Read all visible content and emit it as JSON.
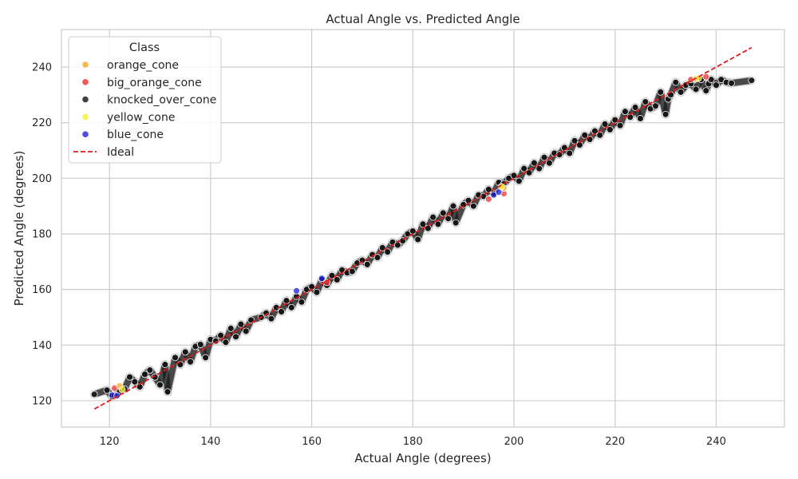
{
  "chart_data": {
    "type": "scatter",
    "title": "Actual Angle vs. Predicted Angle",
    "xlabel": "Actual Angle (degrees)",
    "ylabel": "Predicted Angle (degrees)",
    "xlim": [
      110.5,
      253.5
    ],
    "ylim": [
      110.5,
      253.5
    ],
    "xticks": [
      120,
      140,
      160,
      180,
      200,
      220,
      240
    ],
    "yticks": [
      120,
      140,
      160,
      180,
      200,
      220,
      240
    ],
    "grid": true,
    "legend": {
      "title": "Class",
      "placement": "top-left",
      "entries": [
        {
          "label": "orange_cone",
          "color": "#f5a623",
          "marker": "dot"
        },
        {
          "label": "big_orange_cone",
          "color": "#f03030",
          "marker": "dot"
        },
        {
          "label": "knocked_over_cone",
          "color": "#111111",
          "marker": "dot"
        },
        {
          "label": "yellow_cone",
          "color": "#f4f030",
          "marker": "dot"
        },
        {
          "label": "blue_cone",
          "color": "#2020e0",
          "marker": "dot"
        },
        {
          "label": "Ideal",
          "color": "#e31a1c",
          "marker": "dashed-line"
        }
      ]
    },
    "ideal_line": {
      "name": "Ideal",
      "x": [
        117,
        247
      ],
      "y": [
        117,
        247
      ],
      "color": "#e31a1c"
    },
    "series": [
      {
        "name": "knocked_over_cone",
        "color": "#111111",
        "points": [
          [
            117,
            122.3
          ],
          [
            119.5,
            123.8
          ],
          [
            120.5,
            121.5
          ],
          [
            121,
            122
          ],
          [
            122,
            123.5
          ],
          [
            123,
            124.2
          ],
          [
            124,
            128.5
          ],
          [
            125,
            126.8
          ],
          [
            126,
            125
          ],
          [
            127,
            129.5
          ],
          [
            128,
            131
          ],
          [
            129,
            128.5
          ],
          [
            130,
            125.7
          ],
          [
            131,
            133
          ],
          [
            131.5,
            123.2
          ],
          [
            133,
            135.5
          ],
          [
            134,
            133
          ],
          [
            135,
            137.5
          ],
          [
            136,
            134
          ],
          [
            137,
            139.5
          ],
          [
            138,
            140.2
          ],
          [
            139,
            135.5
          ],
          [
            140,
            142
          ],
          [
            141,
            141.5
          ],
          [
            142,
            143.5
          ],
          [
            143,
            141
          ],
          [
            144,
            146
          ],
          [
            145,
            143
          ],
          [
            146,
            147.5
          ],
          [
            147,
            145
          ],
          [
            148,
            149
          ],
          [
            150,
            150
          ],
          [
            151,
            151.5
          ],
          [
            152,
            149.5
          ],
          [
            153,
            153.5
          ],
          [
            154,
            152
          ],
          [
            155,
            156
          ],
          [
            156,
            153.5
          ],
          [
            157,
            157.5
          ],
          [
            158,
            155.5
          ],
          [
            159,
            160
          ],
          [
            160,
            161
          ],
          [
            161,
            159
          ],
          [
            162,
            163.5
          ],
          [
            163,
            161.5
          ],
          [
            164,
            165
          ],
          [
            165,
            163.5
          ],
          [
            166,
            167
          ],
          [
            167,
            166
          ],
          [
            168,
            166.5
          ],
          [
            169,
            169.5
          ],
          [
            170,
            170.5
          ],
          [
            171,
            169
          ],
          [
            172,
            172.5
          ],
          [
            173,
            171.5
          ],
          [
            174,
            175
          ],
          [
            175,
            173.5
          ],
          [
            176,
            177
          ],
          [
            177,
            176
          ],
          [
            178,
            177.5
          ],
          [
            179,
            180
          ],
          [
            180,
            181
          ],
          [
            181,
            178
          ],
          [
            182,
            183.5
          ],
          [
            183,
            182
          ],
          [
            184,
            186
          ],
          [
            185,
            183.5
          ],
          [
            186,
            187.5
          ],
          [
            187,
            185.5
          ],
          [
            188,
            190
          ],
          [
            188.5,
            184
          ],
          [
            190,
            190.5
          ],
          [
            191,
            192
          ],
          [
            192,
            190
          ],
          [
            193,
            194
          ],
          [
            194,
            193.5
          ],
          [
            195,
            196
          ],
          [
            196,
            194.5
          ],
          [
            197,
            198.5
          ],
          [
            198,
            198
          ],
          [
            199,
            200
          ],
          [
            200,
            201
          ],
          [
            201,
            199
          ],
          [
            202,
            203.5
          ],
          [
            203,
            202
          ],
          [
            204,
            205.5
          ],
          [
            205,
            203.5
          ],
          [
            206,
            207.5
          ],
          [
            207,
            205.5
          ],
          [
            208,
            209
          ],
          [
            209,
            208.5
          ],
          [
            210,
            211
          ],
          [
            211,
            209
          ],
          [
            212,
            213.5
          ],
          [
            213,
            212
          ],
          [
            214,
            215.5
          ],
          [
            215,
            214
          ],
          [
            216,
            217
          ],
          [
            217,
            215.5
          ],
          [
            218,
            219.5
          ],
          [
            219,
            217.5
          ],
          [
            220,
            221
          ],
          [
            221,
            219
          ],
          [
            222,
            224
          ],
          [
            223,
            222
          ],
          [
            224,
            225.5
          ],
          [
            225,
            221.5
          ],
          [
            226,
            227.5
          ],
          [
            227,
            225
          ],
          [
            228,
            226
          ],
          [
            229,
            231
          ],
          [
            230,
            223
          ],
          [
            230.5,
            228.5
          ],
          [
            231,
            230
          ],
          [
            232,
            234.5
          ],
          [
            233,
            231
          ],
          [
            234,
            233.5
          ],
          [
            235,
            234
          ],
          [
            236,
            232
          ],
          [
            237,
            235.5
          ],
          [
            238,
            231.5
          ],
          [
            238.5,
            234
          ],
          [
            239,
            235.5
          ],
          [
            240,
            233.5
          ],
          [
            241,
            235.5
          ],
          [
            242,
            234.5
          ],
          [
            243,
            234.2
          ],
          [
            247,
            235.2
          ]
        ]
      },
      {
        "name": "big_orange_cone",
        "color": "#f03030",
        "points": [
          [
            121,
            124.5
          ],
          [
            163,
            162.5
          ],
          [
            195,
            192.5
          ],
          [
            198,
            194.5
          ],
          [
            235,
            235.5
          ],
          [
            238,
            236.5
          ]
        ]
      },
      {
        "name": "orange_cone",
        "color": "#f5a623",
        "points": [
          [
            122,
            125.3
          ],
          [
            198,
            196.5
          ],
          [
            236,
            235.8
          ]
        ]
      },
      {
        "name": "yellow_cone",
        "color": "#f4f030",
        "points": [
          [
            122.5,
            124
          ],
          [
            197.5,
            197
          ],
          [
            236.5,
            236
          ]
        ]
      },
      {
        "name": "blue_cone",
        "color": "#2020e0",
        "points": [
          [
            120.5,
            122
          ],
          [
            121.5,
            121.8
          ],
          [
            157,
            159.5
          ],
          [
            162,
            164
          ],
          [
            196,
            194
          ],
          [
            197,
            195
          ]
        ]
      }
    ]
  }
}
